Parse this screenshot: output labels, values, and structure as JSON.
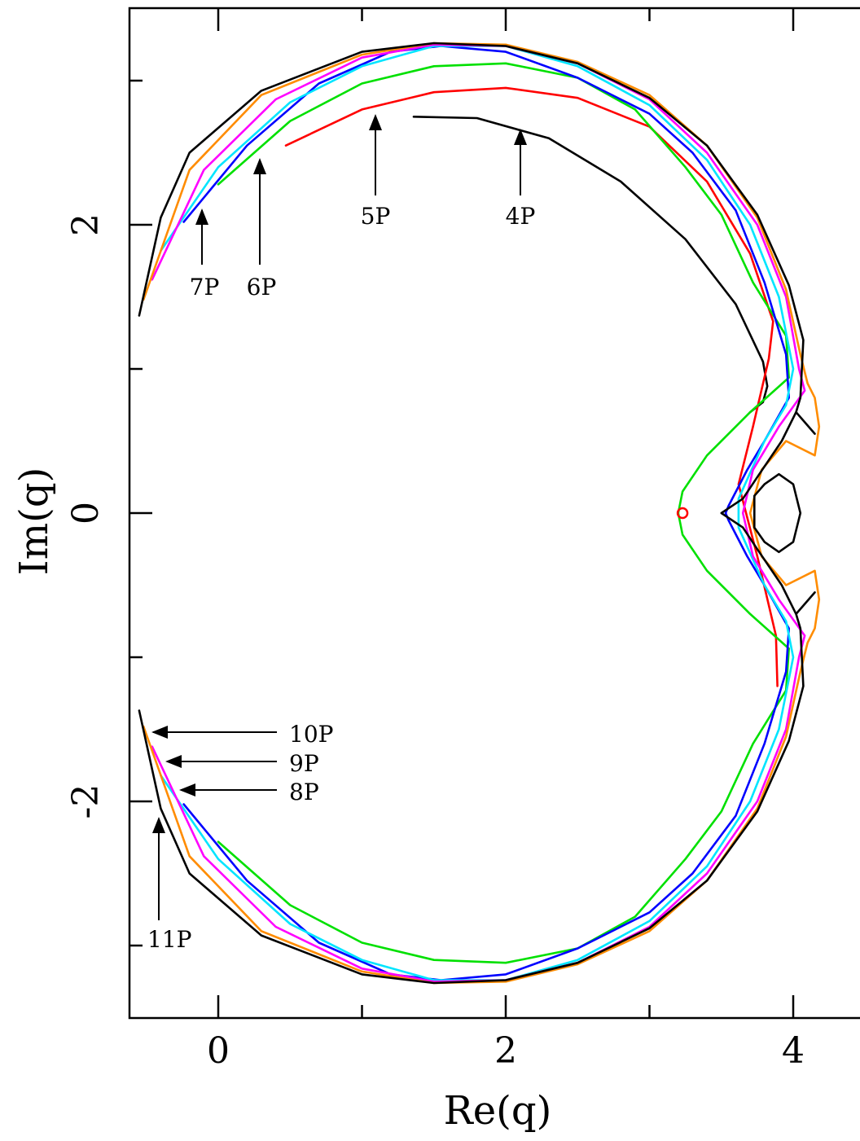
{
  "chart_data": {
    "type": "line",
    "title": "",
    "xlabel": "Re(q)",
    "ylabel": "Im(q)",
    "xlim": [
      -0.62,
      4.6
    ],
    "ylim": [
      -3.5,
      3.5
    ],
    "xticks": [
      "0",
      "2",
      "4"
    ],
    "yticks": [
      "-2",
      "0",
      "2"
    ],
    "grid": false,
    "colors": {
      "4P": "#000000",
      "5P": "#ff0000",
      "6P": "#00e000",
      "7P": "#0000ff",
      "8P": "#00e5ff",
      "9P": "#ff00ff",
      "10P": "#ff8c00",
      "11P": "#000000"
    },
    "annotations": [
      {
        "label": "4P"
      },
      {
        "label": "5P"
      },
      {
        "label": "6P"
      },
      {
        "label": "7P"
      },
      {
        "label": "8P"
      },
      {
        "label": "9P"
      },
      {
        "label": "10P"
      },
      {
        "label": "11P"
      }
    ],
    "marker": {
      "x": 3.23,
      "y": 0,
      "color": "#ff0000"
    },
    "series": [
      {
        "name": "4P",
        "points": [
          [
            1.36,
            2.75
          ],
          [
            1.8,
            2.74
          ],
          [
            2.3,
            2.6
          ],
          [
            2.8,
            2.3
          ],
          [
            3.25,
            1.9
          ],
          [
            3.6,
            1.45
          ],
          [
            3.79,
            1.05
          ],
          [
            3.82,
            0.88
          ],
          [
            3.79,
            0.77
          ],
          [
            3.7,
            0.7
          ]
        ]
      },
      {
        "name": "5P",
        "points": [
          [
            0.47,
            2.55
          ],
          [
            1.0,
            2.8
          ],
          [
            1.5,
            2.92
          ],
          [
            2.0,
            2.95
          ],
          [
            2.5,
            2.88
          ],
          [
            3.0,
            2.68
          ],
          [
            3.4,
            2.3
          ],
          [
            3.7,
            1.8
          ],
          [
            3.86,
            1.33
          ],
          [
            3.83,
            1.07
          ],
          [
            3.72,
            0.6
          ],
          [
            3.62,
            0.2
          ],
          [
            3.75,
            -0.3
          ],
          [
            3.88,
            -0.85
          ],
          [
            3.89,
            -1.2
          ]
        ]
      },
      {
        "name": "6P",
        "points": [
          [
            0.0,
            2.28
          ],
          [
            0.5,
            2.72
          ],
          [
            1.0,
            2.98
          ],
          [
            1.5,
            3.1
          ],
          [
            2.0,
            3.12
          ],
          [
            2.5,
            3.02
          ],
          [
            2.9,
            2.8
          ],
          [
            3.25,
            2.4
          ],
          [
            3.5,
            2.07
          ],
          [
            3.72,
            1.6
          ],
          [
            3.95,
            1.23
          ],
          [
            3.97,
            0.94
          ],
          [
            3.7,
            0.7
          ],
          [
            3.4,
            0.4
          ],
          [
            3.23,
            0.15
          ],
          [
            3.2,
            0.0
          ],
          [
            3.23,
            -0.15
          ],
          [
            3.4,
            -0.4
          ],
          [
            3.7,
            -0.7
          ],
          [
            3.97,
            -0.94
          ],
          [
            3.95,
            -1.23
          ],
          [
            3.72,
            -1.6
          ],
          [
            3.5,
            -2.07
          ],
          [
            3.25,
            -2.4
          ],
          [
            2.9,
            -2.8
          ],
          [
            2.5,
            -3.02
          ],
          [
            2.0,
            -3.12
          ],
          [
            1.5,
            -3.1
          ],
          [
            1.0,
            -2.98
          ],
          [
            0.5,
            -2.72
          ],
          [
            0.0,
            -2.28
          ]
        ]
      },
      {
        "name": "7P",
        "points": [
          [
            -0.24,
            2.02
          ],
          [
            0.2,
            2.55
          ],
          [
            0.7,
            2.98
          ],
          [
            1.2,
            3.2
          ],
          [
            1.55,
            3.24
          ],
          [
            2.0,
            3.2
          ],
          [
            2.5,
            3.02
          ],
          [
            3.0,
            2.77
          ],
          [
            3.3,
            2.5
          ],
          [
            3.6,
            2.1
          ],
          [
            3.8,
            1.6
          ],
          [
            3.95,
            1.1
          ],
          [
            3.97,
            0.8
          ],
          [
            3.8,
            0.5
          ],
          [
            3.68,
            0.3
          ],
          [
            3.55,
            0.05
          ],
          [
            3.53,
            0.0
          ],
          [
            3.55,
            -0.05
          ],
          [
            3.68,
            -0.3
          ],
          [
            3.8,
            -0.5
          ],
          [
            3.97,
            -0.8
          ],
          [
            3.95,
            -1.1
          ],
          [
            3.8,
            -1.6
          ],
          [
            3.6,
            -2.1
          ],
          [
            3.3,
            -2.5
          ],
          [
            3.0,
            -2.77
          ],
          [
            2.5,
            -3.02
          ],
          [
            2.0,
            -3.2
          ],
          [
            1.55,
            -3.24
          ],
          [
            1.2,
            -3.2
          ],
          [
            0.7,
            -2.98
          ],
          [
            0.2,
            -2.55
          ],
          [
            -0.24,
            -2.02
          ]
        ]
      },
      {
        "name": "8P",
        "points": [
          [
            -0.4,
            1.82
          ],
          [
            0.0,
            2.4
          ],
          [
            0.5,
            2.85
          ],
          [
            1.0,
            3.1
          ],
          [
            1.5,
            3.24
          ],
          [
            2.0,
            3.24
          ],
          [
            2.5,
            3.1
          ],
          [
            3.0,
            2.83
          ],
          [
            3.4,
            2.45
          ],
          [
            3.7,
            2.0
          ],
          [
            3.9,
            1.5
          ],
          [
            4.0,
            1.0
          ],
          [
            3.95,
            0.75
          ],
          [
            3.8,
            0.5
          ],
          [
            3.62,
            0.1
          ],
          [
            3.62,
            -0.1
          ],
          [
            3.8,
            -0.5
          ],
          [
            3.95,
            -0.75
          ],
          [
            4.0,
            -1.0
          ],
          [
            3.9,
            -1.5
          ],
          [
            3.7,
            -2.0
          ],
          [
            3.4,
            -2.45
          ],
          [
            3.0,
            -2.83
          ],
          [
            2.5,
            -3.1
          ],
          [
            2.0,
            -3.24
          ],
          [
            1.5,
            -3.24
          ],
          [
            1.0,
            -3.1
          ],
          [
            0.5,
            -2.85
          ],
          [
            0.0,
            -2.4
          ],
          [
            -0.4,
            -1.82
          ]
        ]
      },
      {
        "name": "9P",
        "points": [
          [
            -0.46,
            1.62
          ],
          [
            -0.1,
            2.38
          ],
          [
            0.4,
            2.87
          ],
          [
            1.0,
            3.16
          ],
          [
            1.5,
            3.25
          ],
          [
            2.0,
            3.24
          ],
          [
            2.5,
            3.12
          ],
          [
            3.0,
            2.87
          ],
          [
            3.4,
            2.5
          ],
          [
            3.75,
            2.0
          ],
          [
            3.95,
            1.5
          ],
          [
            4.04,
            1.0
          ],
          [
            4.08,
            0.85
          ],
          [
            3.9,
            0.6
          ],
          [
            3.72,
            0.3
          ],
          [
            3.65,
            0.0
          ],
          [
            3.72,
            -0.3
          ],
          [
            3.9,
            -0.6
          ],
          [
            4.08,
            -0.85
          ],
          [
            4.04,
            -1.0
          ],
          [
            3.95,
            -1.5
          ],
          [
            3.75,
            -2.0
          ],
          [
            3.4,
            -2.5
          ],
          [
            3.0,
            -2.87
          ],
          [
            2.5,
            -3.12
          ],
          [
            2.0,
            -3.24
          ],
          [
            1.5,
            -3.25
          ],
          [
            1.0,
            -3.16
          ],
          [
            0.4,
            -2.87
          ],
          [
            -0.1,
            -2.38
          ],
          [
            -0.46,
            -1.62
          ]
        ]
      },
      {
        "name": "10P",
        "points": [
          [
            -0.52,
            1.48
          ],
          [
            -0.2,
            2.38
          ],
          [
            0.3,
            2.9
          ],
          [
            1.0,
            3.18
          ],
          [
            1.5,
            3.26
          ],
          [
            2.0,
            3.25
          ],
          [
            2.5,
            3.13
          ],
          [
            3.0,
            2.9
          ],
          [
            3.4,
            2.55
          ],
          [
            3.75,
            2.05
          ],
          [
            3.95,
            1.55
          ],
          [
            4.05,
            1.1
          ],
          [
            4.1,
            0.9
          ],
          [
            4.15,
            0.8
          ],
          [
            4.18,
            0.6
          ],
          [
            4.15,
            0.4
          ],
          [
            3.95,
            0.5
          ],
          [
            3.78,
            0.3
          ],
          [
            3.7,
            0.0
          ],
          [
            3.78,
            -0.3
          ],
          [
            3.95,
            -0.5
          ],
          [
            4.15,
            -0.4
          ],
          [
            4.18,
            -0.6
          ],
          [
            4.15,
            -0.8
          ],
          [
            4.1,
            -0.9
          ],
          [
            4.05,
            -1.1
          ],
          [
            3.95,
            -1.55
          ],
          [
            3.75,
            -2.05
          ],
          [
            3.4,
            -2.55
          ],
          [
            3.0,
            -2.9
          ],
          [
            2.5,
            -3.13
          ],
          [
            2.0,
            -3.25
          ],
          [
            1.5,
            -3.26
          ],
          [
            1.0,
            -3.18
          ],
          [
            0.3,
            -2.9
          ],
          [
            -0.2,
            -2.38
          ],
          [
            -0.52,
            -1.48
          ]
        ]
      },
      {
        "name": "11P",
        "points": [
          [
            -0.55,
            1.37
          ],
          [
            -0.4,
            2.05
          ],
          [
            -0.2,
            2.5
          ],
          [
            0.3,
            2.93
          ],
          [
            1.0,
            3.2
          ],
          [
            1.5,
            3.26
          ],
          [
            2.0,
            3.24
          ],
          [
            2.5,
            3.12
          ],
          [
            3.0,
            2.88
          ],
          [
            3.4,
            2.55
          ],
          [
            3.75,
            2.07
          ],
          [
            3.97,
            1.58
          ],
          [
            4.07,
            1.2
          ],
          [
            4.05,
            0.8
          ],
          [
            4.02,
            0.7
          ],
          [
            4.15,
            0.55
          ],
          [
            4.02,
            0.7
          ],
          [
            3.92,
            0.5
          ],
          [
            3.75,
            0.25
          ],
          [
            3.65,
            0.1
          ],
          [
            3.5,
            0.0
          ],
          [
            3.65,
            -0.1
          ],
          [
            3.75,
            -0.25
          ],
          [
            3.92,
            -0.5
          ],
          [
            4.02,
            -0.7
          ],
          [
            4.15,
            -0.55
          ],
          [
            4.02,
            -0.7
          ],
          [
            4.05,
            -0.8
          ],
          [
            4.07,
            -1.2
          ],
          [
            3.97,
            -1.58
          ],
          [
            3.75,
            -2.07
          ],
          [
            3.4,
            -2.55
          ],
          [
            3.0,
            -2.88
          ],
          [
            2.5,
            -3.12
          ],
          [
            2.0,
            -3.24
          ],
          [
            1.5,
            -3.26
          ],
          [
            1.0,
            -3.2
          ],
          [
            0.3,
            -2.93
          ],
          [
            -0.2,
            -2.5
          ],
          [
            -0.4,
            -2.05
          ],
          [
            -0.55,
            -1.37
          ]
        ]
      },
      {
        "name": "inner-loop",
        "points": [
          [
            3.73,
            -0.1
          ],
          [
            3.73,
            0.12
          ],
          [
            3.8,
            0.2
          ],
          [
            3.9,
            0.27
          ],
          [
            4.0,
            0.2
          ],
          [
            4.05,
            0.0
          ],
          [
            4.0,
            -0.2
          ],
          [
            3.9,
            -0.27
          ],
          [
            3.8,
            -0.2
          ],
          [
            3.73,
            -0.1
          ]
        ]
      }
    ]
  }
}
